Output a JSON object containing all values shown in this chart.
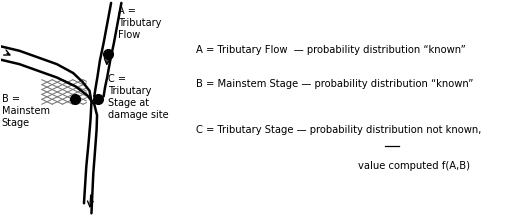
{
  "background_color": "#ffffff",
  "fig_width": 5.2,
  "fig_height": 2.24,
  "dpi": 100,
  "label_A": "A =\nTributary\nFlow",
  "label_B": "B =\nMainstem\nStage",
  "label_C": "C =\nTributary\nStage at\ndamage site",
  "text_A": "A = Tributary Flow  — probability distribution “known”",
  "text_B": "B = Mainstem Stage — probability distribution “known”",
  "text_C1_pre": "C = Tributary Stage — probability distribution ",
  "text_C1_not": "not",
  "text_C1_post": " known,",
  "text_C2": "value computed f(A,B)",
  "dot_size": 7,
  "font_size_label": 7,
  "font_size_text": 7.2,
  "lw_river": 1.8,
  "lw_hatch": 0.75,
  "hatch_color": "#777777",
  "dot_color": "#000000",
  "line_color": "#000000"
}
